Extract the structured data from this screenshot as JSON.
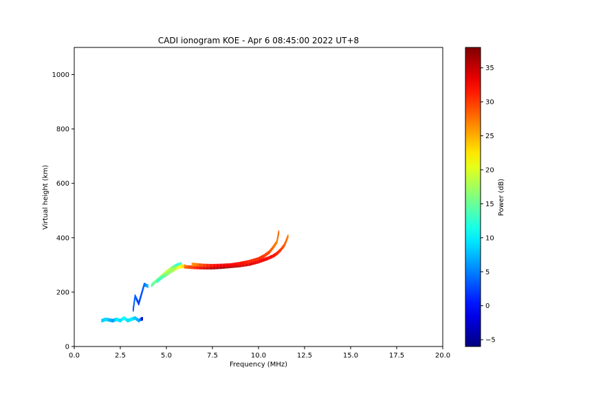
{
  "chart_data": {
    "type": "scatter",
    "title": "CADI ionogram KOE - Apr  6 08:45:00 2022 UT+8",
    "xlabel": "Frequency (MHz)",
    "ylabel": "Virtual height (km)",
    "xlim": [
      0,
      20
    ],
    "ylim": [
      0,
      1100
    ],
    "xticks": [
      0.0,
      2.5,
      5.0,
      7.5,
      10.0,
      12.5,
      15.0,
      17.5,
      20.0
    ],
    "xtick_labels": [
      "0.0",
      "2.5",
      "5.0",
      "7.5",
      "10.0",
      "12.5",
      "15.0",
      "17.5",
      "20.0"
    ],
    "yticks": [
      0,
      200,
      400,
      600,
      800,
      1000
    ],
    "ytick_labels": [
      "0",
      "200",
      "400",
      "600",
      "800",
      "1000"
    ],
    "grid": false,
    "colormap": "jet",
    "colorbar": {
      "label": "Power (dB)",
      "range": [
        -6,
        38
      ],
      "ticks": [
        -5,
        0,
        5,
        10,
        15,
        20,
        25,
        30,
        35
      ],
      "tick_labels": [
        "−5",
        "0",
        "5",
        "10",
        "15",
        "20",
        "25",
        "30",
        "35"
      ]
    },
    "traces": [
      {
        "points": [
          [
            1.5,
            95,
            8
          ],
          [
            1.7,
            100,
            9
          ],
          [
            2.1,
            95,
            6
          ],
          [
            2.3,
            100,
            10
          ],
          [
            2.5,
            95,
            9
          ],
          [
            2.7,
            105,
            11
          ],
          [
            2.9,
            95,
            9
          ],
          [
            3.1,
            100,
            10
          ],
          [
            3.3,
            105,
            8
          ],
          [
            3.5,
            95,
            7
          ],
          [
            3.6,
            100,
            4
          ],
          [
            3.7,
            102,
            -4
          ]
        ]
      },
      {
        "points": [
          [
            3.2,
            135,
            3
          ],
          [
            3.3,
            185,
            4
          ],
          [
            3.5,
            158,
            2
          ],
          [
            3.8,
            228,
            4
          ],
          [
            4.0,
            222,
            8
          ]
        ]
      },
      {
        "points": [
          [
            4.2,
            225,
            14
          ],
          [
            4.4,
            238,
            16
          ],
          [
            4.6,
            250,
            17
          ],
          [
            4.8,
            262,
            18
          ],
          [
            5.0,
            274,
            19
          ],
          [
            5.2,
            284,
            18
          ],
          [
            5.4,
            293,
            15
          ],
          [
            5.6,
            300,
            12
          ],
          [
            5.8,
            304,
            12
          ]
        ]
      },
      {
        "points": [
          [
            4.5,
            240,
            12
          ],
          [
            4.8,
            256,
            14
          ],
          [
            5.0,
            264,
            16
          ],
          [
            5.2,
            274,
            17
          ],
          [
            5.4,
            282,
            18
          ],
          [
            5.6,
            290,
            20
          ],
          [
            5.8,
            294,
            22
          ],
          [
            6.0,
            296,
            25
          ]
        ]
      },
      {
        "points": [
          [
            6.0,
            293,
            28
          ],
          [
            6.5,
            291,
            31
          ],
          [
            7.0,
            290,
            34
          ],
          [
            7.5,
            290,
            36
          ],
          [
            8.0,
            292,
            37
          ],
          [
            8.5,
            295,
            36
          ],
          [
            9.0,
            298,
            35
          ],
          [
            9.5,
            303,
            34
          ],
          [
            10.0,
            312,
            33
          ],
          [
            10.5,
            324,
            33
          ],
          [
            10.8,
            333,
            32
          ],
          [
            11.0,
            342,
            31
          ],
          [
            11.2,
            355,
            30
          ],
          [
            11.4,
            372,
            29
          ],
          [
            11.5,
            388,
            28
          ],
          [
            11.6,
            405,
            27
          ]
        ]
      },
      {
        "points": [
          [
            6.4,
            302,
            26
          ],
          [
            7.0,
            298,
            30
          ],
          [
            7.5,
            297,
            32
          ],
          [
            8.0,
            298,
            33
          ],
          [
            8.5,
            300,
            33
          ],
          [
            9.0,
            305,
            32
          ],
          [
            9.5,
            312,
            31
          ],
          [
            10.0,
            322,
            31
          ],
          [
            10.3,
            333,
            30
          ],
          [
            10.6,
            348,
            29
          ],
          [
            10.8,
            365,
            28
          ],
          [
            11.0,
            385,
            27
          ],
          [
            11.1,
            420,
            28
          ]
        ]
      }
    ]
  }
}
